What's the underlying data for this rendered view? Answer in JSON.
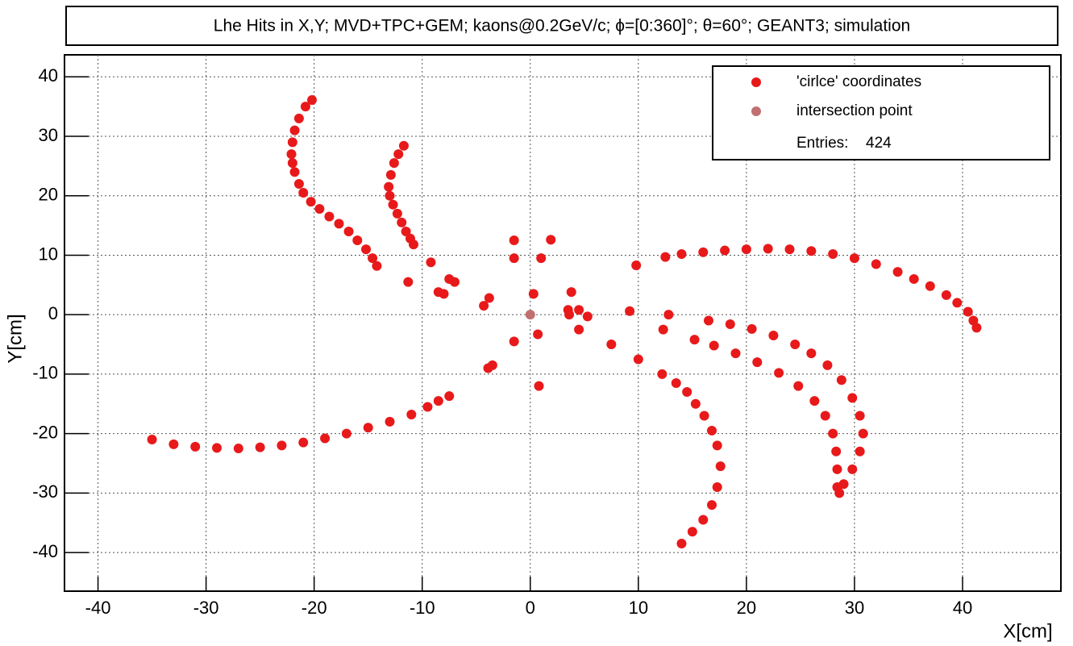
{
  "chart_data": {
    "type": "scatter",
    "title": "Lhe Hits in X,Y; MVD+TPC+GEM; kaons@0.2GeV/c; ϕ=[0:360]°; θ=60°; GEANT3; simulation",
    "x_label": "X[cm]",
    "y_label": "Y[cm]",
    "xlim": [
      -43.1,
      49.1
    ],
    "ylim": [
      -46.5,
      43.7
    ],
    "xticks": [
      -40,
      -30,
      -20,
      -10,
      0,
      10,
      20,
      30,
      40
    ],
    "yticks": [
      -40,
      -30,
      -20,
      -10,
      0,
      10,
      20,
      30,
      40
    ],
    "grid": true,
    "legend": "upper right",
    "entries_label": "Entries:",
    "entries": 424,
    "series": [
      {
        "name": "'cirlce' coordinates",
        "color": "#e8191a",
        "x": [
          -20.2,
          -20.8,
          -21.4,
          -21.8,
          -22,
          -22.1,
          -22,
          -21.8,
          -21.4,
          -21,
          -20.3,
          -19.5,
          -18.6,
          -17.7,
          -16.8,
          -16,
          -15.2,
          -14.6,
          -14.2,
          -11.7,
          -12.2,
          -12.6,
          -12.9,
          -13.1,
          -13,
          -12.7,
          -12.3,
          -11.9,
          -11.5,
          -11.1,
          -10.8,
          -35,
          -33,
          -31,
          -29,
          -27,
          -25,
          -23,
          -21,
          -19,
          -17,
          -15,
          -13,
          -11,
          -9.5,
          -8.5,
          -7.5,
          12.5,
          14,
          16,
          18,
          20,
          22,
          24,
          26,
          28,
          30,
          32,
          34,
          35.5,
          37,
          38.5,
          39.5,
          40.5,
          41,
          41.3,
          16.5,
          18.5,
          20.5,
          22.5,
          24.5,
          26,
          27.5,
          28.8,
          29.8,
          30.5,
          30.8,
          30.5,
          29.8,
          29,
          28.6,
          15.2,
          17,
          19,
          21,
          23,
          24.8,
          26.3,
          27.3,
          28,
          28.3,
          28.4,
          28.4,
          12.2,
          13.5,
          14.5,
          15.3,
          16.1,
          16.8,
          17.3,
          17.6,
          17.3,
          16.8,
          16,
          15,
          14,
          -1.5,
          -1.5,
          1,
          1.9,
          -9.2,
          -11.3,
          -8.5,
          -8,
          -7.5,
          -7,
          -4.3,
          -3.8,
          -1.5,
          -3.5,
          -3.9,
          0.3,
          0.7,
          0.8,
          3.5,
          3.8,
          3.6,
          4.5,
          4.5,
          5.3,
          7.5,
          9.2,
          9.8,
          10,
          12.3,
          12.8
        ],
        "y": [
          36.1,
          35,
          33,
          31,
          29,
          27,
          25.5,
          24,
          22,
          20.5,
          19,
          17.8,
          16.5,
          15.3,
          14,
          12.5,
          11,
          9.5,
          8.2,
          28.4,
          27,
          25.5,
          23.5,
          21.5,
          20,
          18.5,
          17,
          15.5,
          14,
          12.8,
          11.8,
          -21,
          -21.8,
          -22.2,
          -22.4,
          -22.5,
          -22.3,
          -22,
          -21.5,
          -20.8,
          -20,
          -19,
          -18,
          -16.8,
          -15.5,
          -14.5,
          -13.7,
          9.7,
          10.2,
          10.5,
          10.8,
          11,
          11.1,
          11,
          10.7,
          10.2,
          9.5,
          8.5,
          7.2,
          6,
          4.8,
          3.3,
          2,
          0.5,
          -1,
          -2.2,
          -1,
          -1.6,
          -2.4,
          -3.5,
          -5,
          -6.5,
          -8.5,
          -11,
          -14,
          -17,
          -20,
          -23,
          -26,
          -28.5,
          -30,
          -4.2,
          -5.2,
          -6.5,
          -8,
          -9.8,
          -12,
          -14.5,
          -17,
          -20,
          -23,
          -26,
          -29,
          -10,
          -11.5,
          -13,
          -15,
          -17,
          -19.5,
          -22,
          -25.5,
          -29,
          -32,
          -34.5,
          -36.5,
          -38.5,
          12.5,
          9.5,
          9.5,
          12.6,
          8.8,
          5.5,
          3.8,
          3.5,
          6,
          5.5,
          1.5,
          2.8,
          -4.5,
          -8.5,
          -9,
          3.5,
          -3.3,
          -12,
          0.8,
          3.8,
          0,
          0.8,
          -2.5,
          -0.3,
          -5,
          0.6,
          8.3,
          -7.5,
          -2.5,
          0
        ]
      },
      {
        "name": "intersection point",
        "color": "#c07070",
        "x": [
          0
        ],
        "y": [
          0
        ]
      }
    ]
  }
}
